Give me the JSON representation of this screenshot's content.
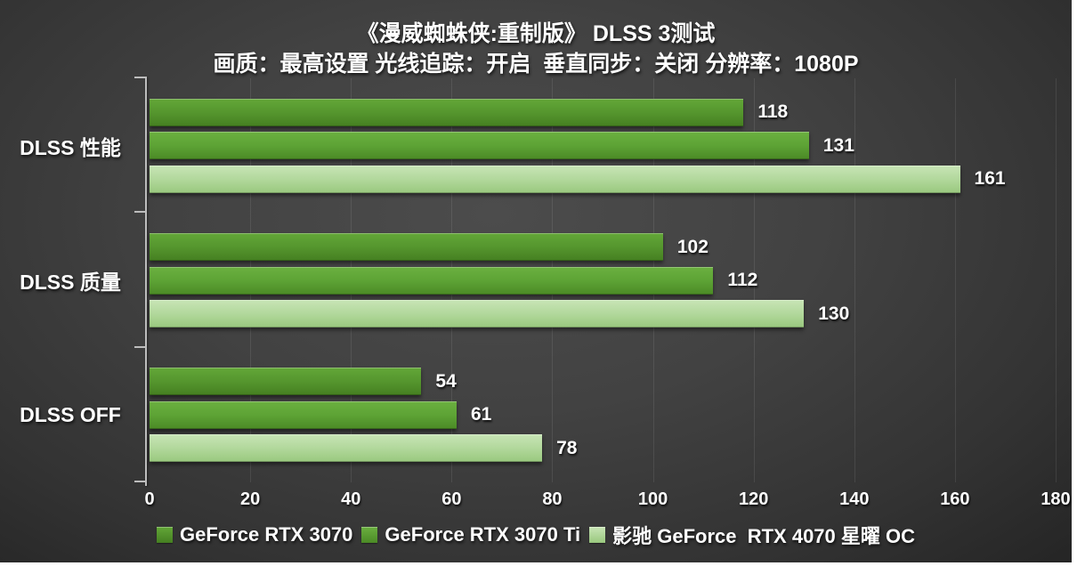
{
  "title": "《漫威蜘蛛侠:重制版》 DLSS 3测试",
  "subtitle": "画质：最高设置 光线追踪：开启  垂直同步：关闭 分辨率：1080P",
  "colors": {
    "page_background": "#ffffff",
    "chart_background_center": "#4c4c4c",
    "chart_background_edge": "#252525",
    "text": "#ffffff",
    "axis": "#bdbdbd"
  },
  "chart_data": {
    "type": "bar",
    "orientation": "horizontal",
    "title": "《漫威蜘蛛侠:重制版》 DLSS 3测试",
    "subtitle": "画质：最高设置 光线追踪：开启  垂直同步：关闭 分辨率：1080P",
    "categories": [
      "DLSS 性能",
      "DLSS 质量",
      "DLSS OFF"
    ],
    "series": [
      {
        "name": "GeForce RTX 3070",
        "values": [
          118,
          102,
          54
        ],
        "color": "#55962e",
        "color_top": "#63a738",
        "color_bottom": "#457f21"
      },
      {
        "name": "GeForce RTX 3070 Ti",
        "values": [
          131,
          112,
          61
        ],
        "color": "#5da335",
        "color_top": "#6bb040",
        "color_bottom": "#4b8a26"
      },
      {
        "name": "影驰 GeForce  RTX 4070 星曜 OC",
        "values": [
          161,
          130,
          78
        ],
        "color": "#b2d89c",
        "color_top": "#c8e5b6",
        "color_bottom": "#99c87e"
      }
    ],
    "xlim": [
      0,
      180
    ],
    "xticks": [
      0,
      20,
      40,
      60,
      80,
      100,
      120,
      140,
      160,
      180
    ],
    "grid": true,
    "legend_position": "bottom",
    "value_labels": true
  }
}
